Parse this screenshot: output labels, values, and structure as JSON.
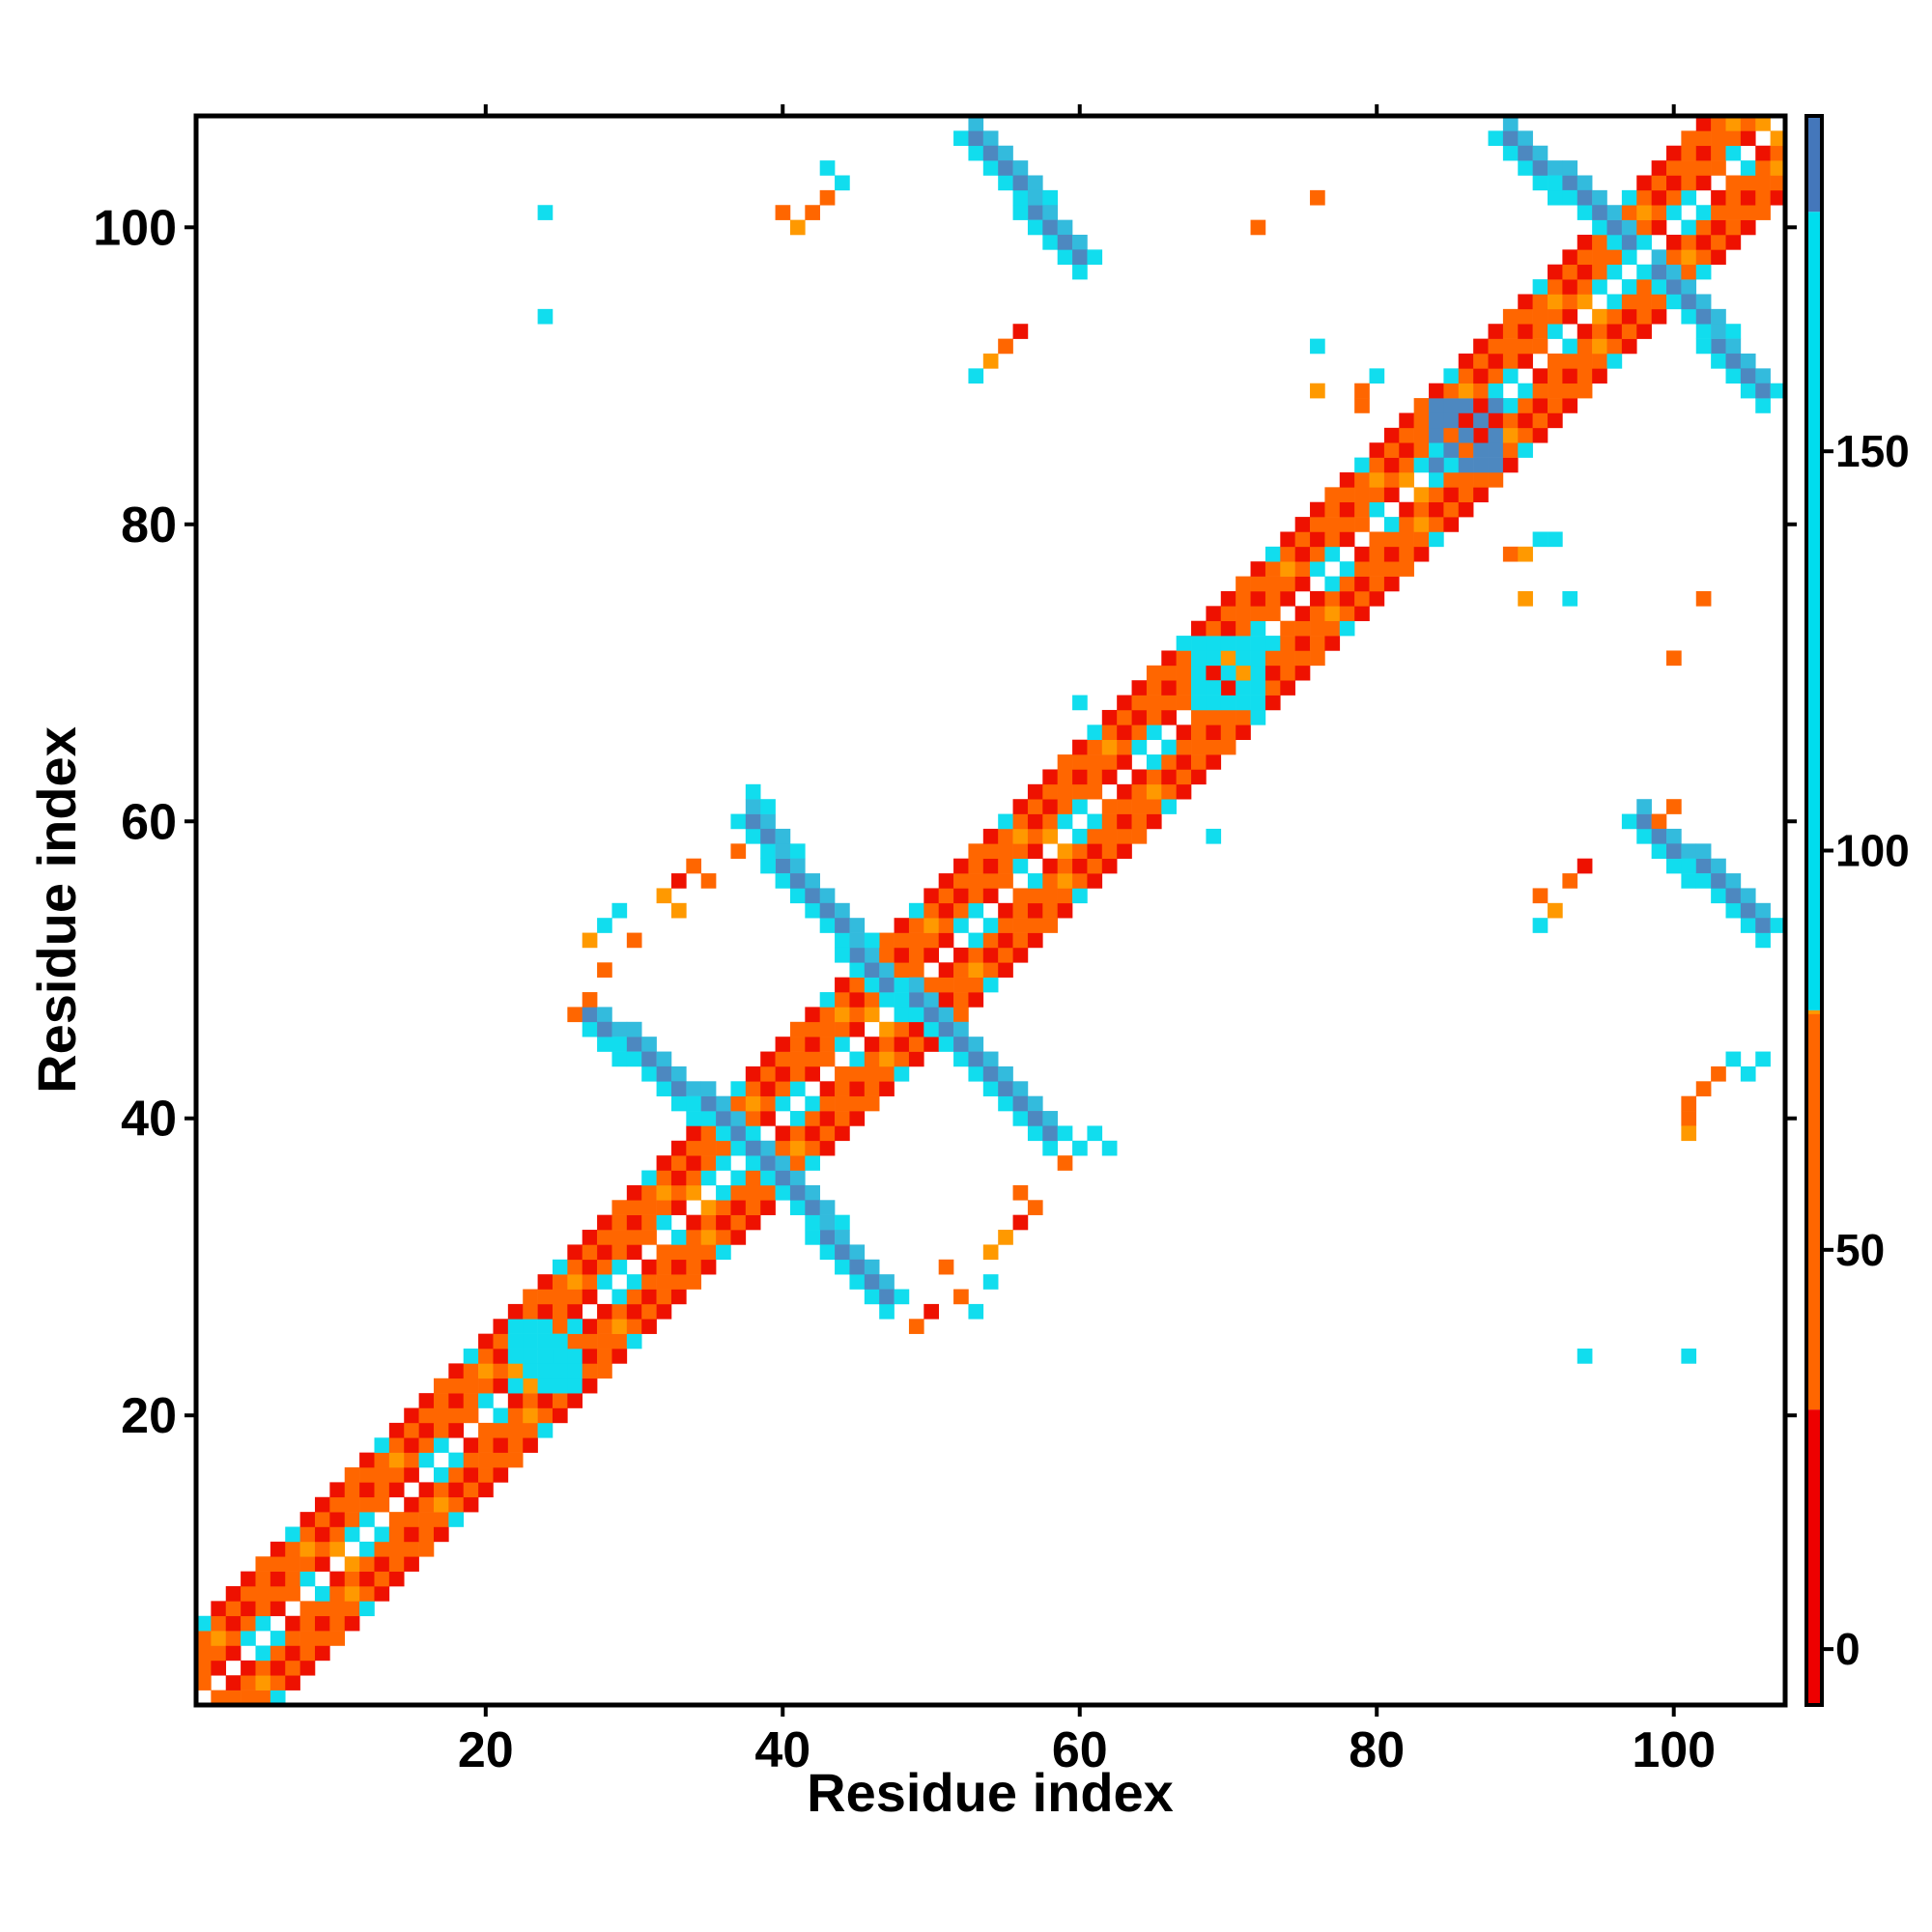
{
  "chart_data": {
    "type": "heatmap",
    "title": "",
    "xlabel": "Residue index",
    "ylabel": "Residue index",
    "xlim": [
      1,
      107
    ],
    "ylim": [
      1,
      107
    ],
    "x_ticks": [
      "20",
      "40",
      "60",
      "80",
      "100"
    ],
    "y_ticks": [
      "20",
      "40",
      "60",
      "80",
      "100"
    ],
    "grid": false,
    "legend": "colorbar-right",
    "colorbar": {
      "range": [
        -7,
        192
      ],
      "ticks": [
        "0",
        "50",
        "100",
        "150"
      ],
      "bands": [
        {
          "from": -7,
          "to": 30,
          "color": "#ee0000"
        },
        {
          "from": 30,
          "to": 80,
          "color": "#ff6600"
        },
        {
          "from": 80,
          "to": 80,
          "color": "#ff9900"
        },
        {
          "from": 80,
          "to": 180,
          "color": "#00ddee"
        },
        {
          "from": 180,
          "to": 192,
          "color": "#4477bb"
        }
      ]
    },
    "color_classes": {
      "R": {
        "label": "0",
        "color": "#ee1100"
      },
      "O": {
        "label": "50",
        "color": "#ff6600"
      },
      "Y": {
        "label": "80",
        "color": "#ff9900"
      },
      "C": {
        "label": "100",
        "color": "#11ddee"
      },
      "M": {
        "label": "130",
        "color": "#33bbdd"
      },
      "B": {
        "label": "170",
        "color": "#4d88c0"
      }
    },
    "diagonal_pattern": [
      "C",
      "R",
      "O",
      "R",
      "O",
      "Y"
    ],
    "regions": [
      {
        "x": [
          38,
          47
        ],
        "y": [
          28,
          38
        ],
        "direction": "anti",
        "class": "B",
        "edge": "C"
      },
      {
        "x": [
          27,
          37
        ],
        "y": [
          39,
          47
        ],
        "direction": "anti",
        "class": "B",
        "edge": "C"
      },
      {
        "x": [
          49,
          58
        ],
        "y": [
          39,
          48
        ],
        "direction": "anti",
        "class": "B",
        "edge": "C"
      },
      {
        "x": [
          38,
          47
        ],
        "y": [
          49,
          60
        ],
        "direction": "anti",
        "class": "B",
        "edge": "C"
      },
      {
        "x": [
          53,
          60
        ],
        "y": [
          98,
          106
        ],
        "direction": "anti",
        "class": "B",
        "edge": "C"
      },
      {
        "x": [
          98,
          106
        ],
        "y": [
          53,
          60
        ],
        "direction": "anti",
        "class": "B",
        "edge": "C"
      },
      {
        "x": [
          89,
          97
        ],
        "y": [
          99,
          106
        ],
        "direction": "anti",
        "class": "B",
        "edge": "C"
      },
      {
        "x": [
          99,
          106
        ],
        "y": [
          89,
          97
        ],
        "direction": "anti",
        "class": "B",
        "edge": "C"
      }
    ],
    "blocks": [
      {
        "x": [
          84,
          88
        ],
        "y": [
          84,
          88
        ],
        "class": "B"
      },
      {
        "x": [
          68,
          72
        ],
        "y": [
          68,
          72
        ],
        "class": "C"
      },
      {
        "x": [
          22,
          26
        ],
        "y": [
          22,
          26
        ],
        "class": "C"
      }
    ],
    "points": [
      {
        "x": 24,
        "y": 101,
        "c": "C"
      },
      {
        "x": 24,
        "y": 94,
        "c": "C"
      },
      {
        "x": 43,
        "y": 104,
        "c": "C"
      },
      {
        "x": 44,
        "y": 103,
        "c": "C"
      },
      {
        "x": 43,
        "y": 102,
        "c": "O"
      },
      {
        "x": 42,
        "y": 101,
        "c": "O"
      },
      {
        "x": 40,
        "y": 101,
        "c": "O"
      },
      {
        "x": 41,
        "y": 100,
        "c": "Y"
      },
      {
        "x": 55,
        "y": 92,
        "c": "O"
      },
      {
        "x": 56,
        "y": 93,
        "c": "R"
      },
      {
        "x": 54,
        "y": 91,
        "c": "Y"
      },
      {
        "x": 53,
        "y": 90,
        "c": "C"
      },
      {
        "x": 72,
        "y": 100,
        "c": "O"
      },
      {
        "x": 76,
        "y": 102,
        "c": "O"
      },
      {
        "x": 76,
        "y": 92,
        "c": "C"
      },
      {
        "x": 76,
        "y": 89,
        "c": "Y"
      },
      {
        "x": 79,
        "y": 89,
        "c": "O"
      },
      {
        "x": 80,
        "y": 90,
        "c": "C"
      },
      {
        "x": 79,
        "y": 88,
        "c": "O"
      },
      {
        "x": 91,
        "y": 79,
        "c": "C"
      },
      {
        "x": 89,
        "y": 78,
        "c": "O"
      },
      {
        "x": 90,
        "y": 78,
        "c": "Y"
      },
      {
        "x": 92,
        "y": 79,
        "c": "C"
      },
      {
        "x": 93,
        "y": 75,
        "c": "C"
      },
      {
        "x": 90,
        "y": 75,
        "c": "Y"
      },
      {
        "x": 102,
        "y": 75,
        "c": "O"
      },
      {
        "x": 100,
        "y": 71,
        "c": "O"
      },
      {
        "x": 60,
        "y": 68,
        "c": "C"
      },
      {
        "x": 69,
        "y": 59,
        "c": "C"
      },
      {
        "x": 38,
        "y": 62,
        "c": "C"
      },
      {
        "x": 39,
        "y": 61,
        "c": "C"
      },
      {
        "x": 37,
        "y": 58,
        "c": "O"
      },
      {
        "x": 35,
        "y": 56,
        "c": "O"
      },
      {
        "x": 34,
        "y": 57,
        "c": "O"
      },
      {
        "x": 33,
        "y": 56,
        "c": "R"
      },
      {
        "x": 32,
        "y": 55,
        "c": "Y"
      },
      {
        "x": 33,
        "y": 54,
        "c": "Y"
      },
      {
        "x": 29,
        "y": 54,
        "c": "C"
      },
      {
        "x": 27,
        "y": 52,
        "c": "Y"
      },
      {
        "x": 28,
        "y": 53,
        "c": "C"
      },
      {
        "x": 30,
        "y": 52,
        "c": "O"
      },
      {
        "x": 28,
        "y": 50,
        "c": "O"
      },
      {
        "x": 27,
        "y": 48,
        "c": "O"
      },
      {
        "x": 26,
        "y": 47,
        "c": "O"
      },
      {
        "x": 56,
        "y": 35,
        "c": "O"
      },
      {
        "x": 57,
        "y": 34,
        "c": "O"
      },
      {
        "x": 56,
        "y": 33,
        "c": "R"
      },
      {
        "x": 55,
        "y": 32,
        "c": "Y"
      },
      {
        "x": 54,
        "y": 31,
        "c": "Y"
      },
      {
        "x": 51,
        "y": 30,
        "c": "O"
      },
      {
        "x": 52,
        "y": 28,
        "c": "O"
      },
      {
        "x": 54,
        "y": 29,
        "c": "C"
      },
      {
        "x": 53,
        "y": 27,
        "c": "C"
      },
      {
        "x": 50,
        "y": 27,
        "c": "R"
      },
      {
        "x": 49,
        "y": 26,
        "c": "O"
      },
      {
        "x": 62,
        "y": 38,
        "c": "C"
      },
      {
        "x": 61,
        "y": 39,
        "c": "C"
      },
      {
        "x": 60,
        "y": 38,
        "c": "C"
      },
      {
        "x": 59,
        "y": 37,
        "c": "O"
      },
      {
        "x": 94,
        "y": 24,
        "c": "C"
      },
      {
        "x": 101,
        "y": 24,
        "c": "C"
      },
      {
        "x": 91,
        "y": 55,
        "c": "O"
      },
      {
        "x": 93,
        "y": 56,
        "c": "O"
      },
      {
        "x": 94,
        "y": 57,
        "c": "R"
      },
      {
        "x": 92,
        "y": 54,
        "c": "Y"
      },
      {
        "x": 91,
        "y": 53,
        "c": "C"
      },
      {
        "x": 99,
        "y": 60,
        "c": "O"
      },
      {
        "x": 100,
        "y": 61,
        "c": "O"
      },
      {
        "x": 101,
        "y": 40,
        "c": "O"
      },
      {
        "x": 101,
        "y": 41,
        "c": "O"
      },
      {
        "x": 102,
        "y": 42,
        "c": "O"
      },
      {
        "x": 103,
        "y": 43,
        "c": "O"
      },
      {
        "x": 104,
        "y": 44,
        "c": "C"
      },
      {
        "x": 105,
        "y": 43,
        "c": "C"
      },
      {
        "x": 106,
        "y": 44,
        "c": "C"
      },
      {
        "x": 101,
        "y": 39,
        "c": "Y"
      }
    ]
  }
}
